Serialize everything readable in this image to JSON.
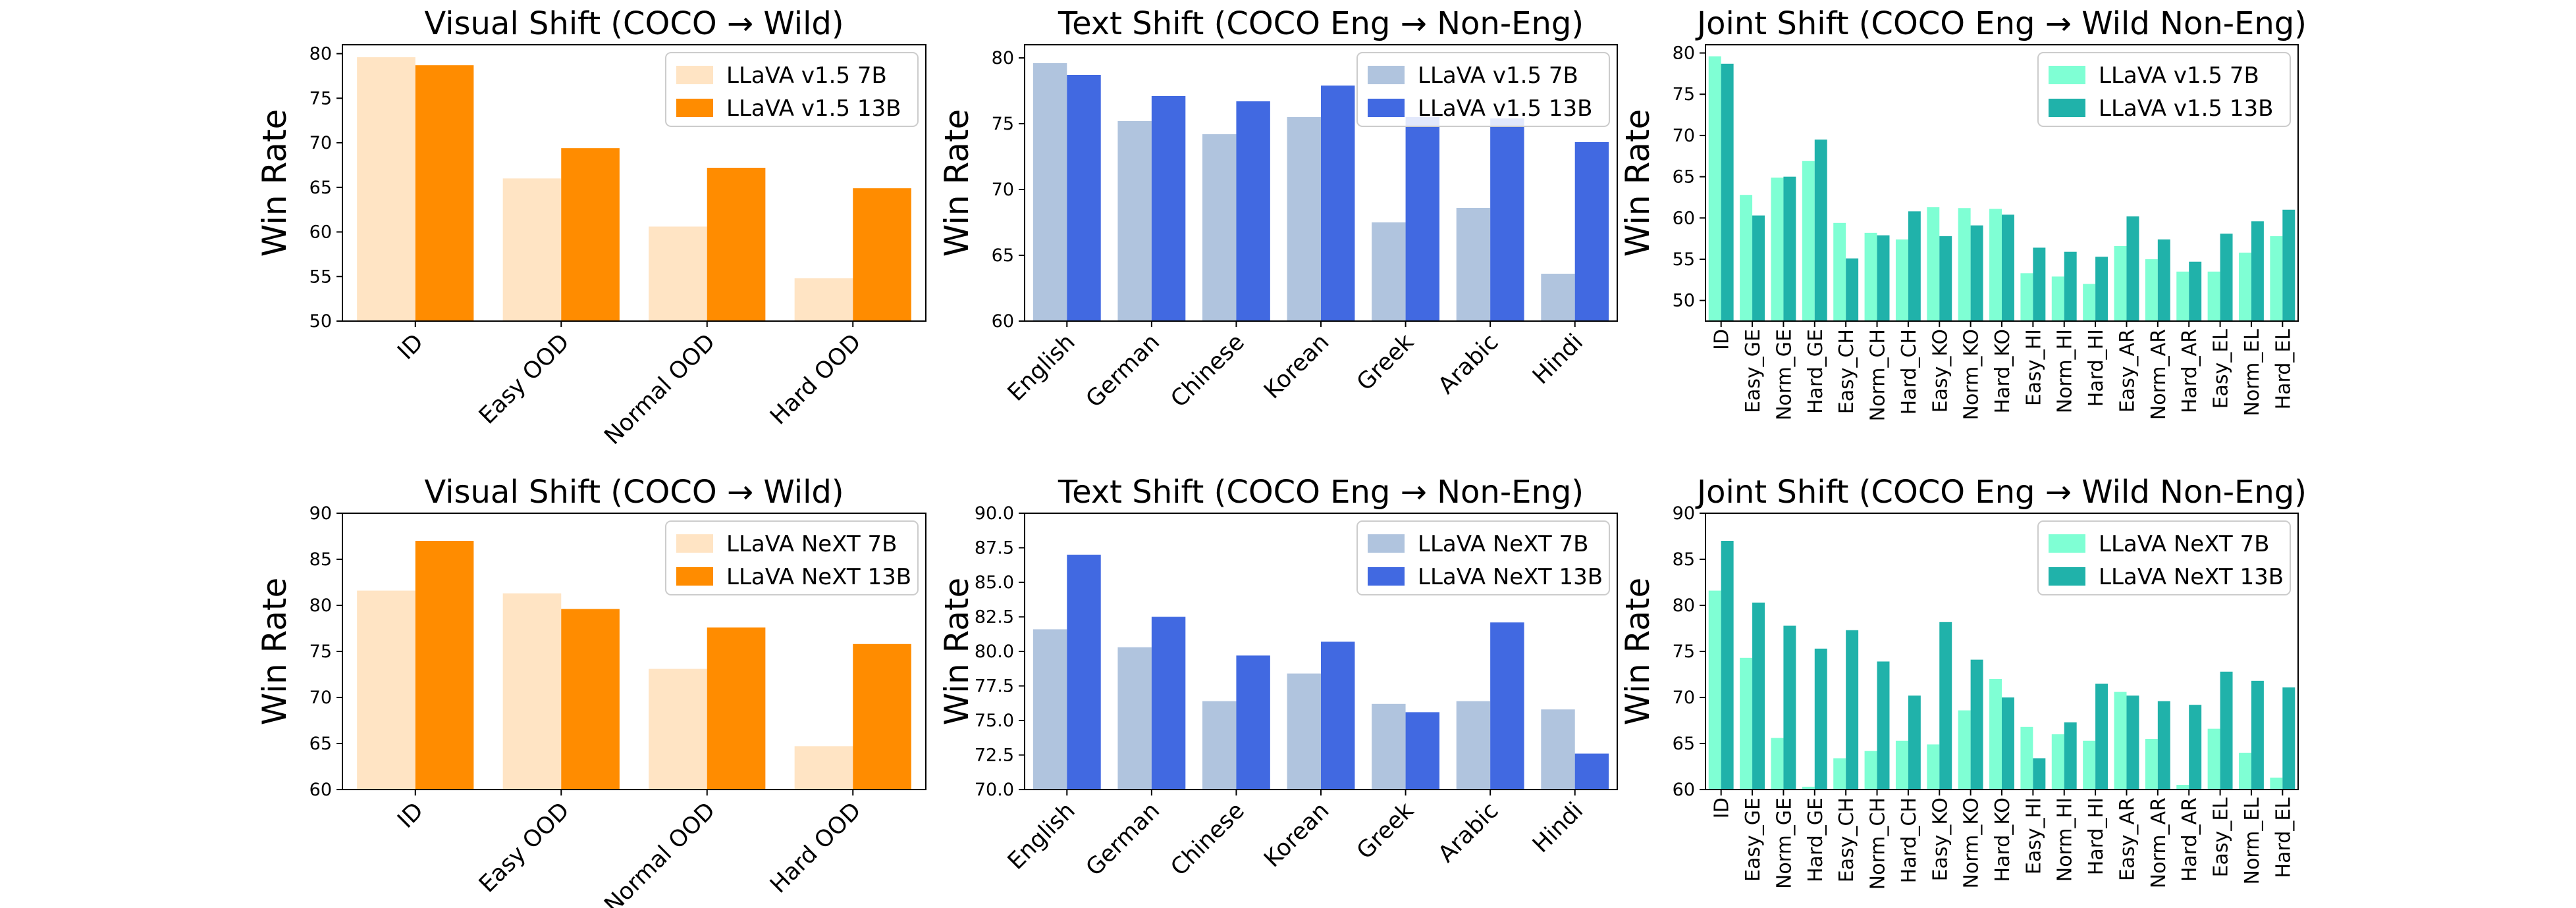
{
  "chart_data": [
    {
      "type": "bar",
      "title": "Visual Shift (COCO → Wild)",
      "xlabel": "",
      "ylabel": "Win Rate",
      "ylim": [
        50,
        81
      ],
      "yticks": [
        50,
        55,
        60,
        65,
        70,
        75,
        80
      ],
      "categories": [
        "ID",
        "Easy OOD",
        "Normal OOD",
        "Hard OOD"
      ],
      "series": [
        {
          "name": "LLaVA v1.5 7B",
          "color": "#ffe4c4",
          "values": [
            79.6,
            66.0,
            60.6,
            54.8
          ]
        },
        {
          "name": "LLaVA v1.5 13B",
          "color": "#ff8c00",
          "values": [
            78.7,
            69.4,
            67.2,
            64.9
          ]
        }
      ],
      "legend": "top-right",
      "grid": false
    },
    {
      "type": "bar",
      "title": "Text Shift (COCO Eng → Non-Eng)",
      "xlabel": "",
      "ylabel": "Win Rate",
      "ylim": [
        60,
        81
      ],
      "yticks": [
        60,
        65,
        70,
        75,
        80
      ],
      "categories": [
        "English",
        "German",
        "Chinese",
        "Korean",
        "Greek",
        "Arabic",
        "Hindi"
      ],
      "series": [
        {
          "name": "LLaVA v1.5 7B",
          "color": "#b0c4de",
          "values": [
            79.6,
            75.2,
            74.2,
            75.5,
            67.5,
            68.6,
            63.6
          ]
        },
        {
          "name": "LLaVA v1.5 13B",
          "color": "#4169e1",
          "values": [
            78.7,
            77.1,
            76.7,
            77.9,
            75.5,
            75.4,
            73.6
          ]
        }
      ],
      "legend": "top-right",
      "grid": false
    },
    {
      "type": "bar",
      "title": "Joint Shift (COCO Eng → Wild Non-Eng)",
      "xlabel": "",
      "ylabel": "Win Rate",
      "ylim": [
        47.5,
        81
      ],
      "yticks": [
        50,
        55,
        60,
        65,
        70,
        75,
        80
      ],
      "categories": [
        "ID",
        "Easy_GE",
        "Norm_GE",
        "Hard_GE",
        "Easy_CH",
        "Norm_CH",
        "Hard_CH",
        "Easy_KO",
        "Norm_KO",
        "Hard_KO",
        "Easy_HI",
        "Norm_HI",
        "Hard_HI",
        "Easy_AR",
        "Norm_AR",
        "Hard_AR",
        "Easy_EL",
        "Norm_EL",
        "Hard_EL"
      ],
      "series": [
        {
          "name": "LLaVA v1.5 7B",
          "color": "#7fffd4",
          "values": [
            79.6,
            62.8,
            64.9,
            66.9,
            59.4,
            58.2,
            57.4,
            61.3,
            61.2,
            61.1,
            53.3,
            52.9,
            52.0,
            56.6,
            55.0,
            53.5,
            53.5,
            55.8,
            57.8
          ]
        },
        {
          "name": "LLaVA v1.5 13B",
          "color": "#20b2aa",
          "values": [
            78.7,
            60.3,
            65.0,
            69.5,
            55.1,
            57.9,
            60.8,
            57.8,
            59.1,
            60.4,
            56.4,
            55.9,
            55.3,
            60.2,
            57.4,
            54.7,
            58.1,
            59.6,
            61.0
          ]
        }
      ],
      "legend": "top-right",
      "grid": false
    },
    {
      "type": "bar",
      "title": "Visual Shift (COCO → Wild)",
      "xlabel": "",
      "ylabel": "Win Rate",
      "ylim": [
        60,
        90
      ],
      "yticks": [
        60,
        65,
        70,
        75,
        80,
        85,
        90
      ],
      "categories": [
        "ID",
        "Easy OOD",
        "Normal OOD",
        "Hard OOD"
      ],
      "series": [
        {
          "name": "LLaVA NeXT 7B",
          "color": "#ffe4c4",
          "values": [
            81.6,
            81.3,
            73.1,
            64.7
          ]
        },
        {
          "name": "LLaVA NeXT 13B",
          "color": "#ff8c00",
          "values": [
            87.0,
            79.6,
            77.6,
            75.8
          ]
        }
      ],
      "legend": "top-right",
      "grid": false
    },
    {
      "type": "bar",
      "title": "Text Shift (COCO Eng → Non-Eng)",
      "xlabel": "",
      "ylabel": "Win Rate",
      "ylim": [
        70,
        90
      ],
      "yticks": [
        70.0,
        72.5,
        75.0,
        77.5,
        80.0,
        82.5,
        85.0,
        87.5,
        90.0
      ],
      "categories": [
        "English",
        "German",
        "Chinese",
        "Korean",
        "Greek",
        "Arabic",
        "Hindi"
      ],
      "series": [
        {
          "name": "LLaVA NeXT 7B",
          "color": "#b0c4de",
          "values": [
            81.6,
            80.3,
            76.4,
            78.4,
            76.2,
            76.4,
            75.8
          ]
        },
        {
          "name": "LLaVA NeXT 13B",
          "color": "#4169e1",
          "values": [
            87.0,
            82.5,
            79.7,
            80.7,
            75.6,
            82.1,
            72.6
          ]
        }
      ],
      "legend": "top-right",
      "grid": false
    },
    {
      "type": "bar",
      "title": "Joint Shift (COCO Eng → Wild Non-Eng)",
      "xlabel": "",
      "ylabel": "Win Rate",
      "ylim": [
        60,
        90
      ],
      "yticks": [
        60,
        65,
        70,
        75,
        80,
        85,
        90
      ],
      "categories": [
        "ID",
        "Easy_GE",
        "Norm_GE",
        "Hard_GE",
        "Easy_CH",
        "Norm_CH",
        "Hard_CH",
        "Easy_KO",
        "Norm_KO",
        "Hard_KO",
        "Easy_HI",
        "Norm_HI",
        "Hard_HI",
        "Easy_AR",
        "Norm_AR",
        "Hard_AR",
        "Easy_EL",
        "Norm_EL",
        "Hard_EL"
      ],
      "series": [
        {
          "name": "LLaVA NeXT 7B",
          "color": "#7fffd4",
          "values": [
            81.6,
            74.3,
            65.6,
            60.3,
            63.4,
            64.2,
            65.3,
            64.9,
            68.6,
            72.0,
            66.8,
            66.0,
            65.3,
            70.6,
            65.5,
            60.5,
            66.6,
            64.0,
            61.3
          ]
        },
        {
          "name": "LLaVA NeXT 13B",
          "color": "#20b2aa",
          "values": [
            87.0,
            80.3,
            77.8,
            75.3,
            77.3,
            73.9,
            70.2,
            78.2,
            74.1,
            70.0,
            63.4,
            67.3,
            71.5,
            70.2,
            69.6,
            69.2,
            72.8,
            71.8,
            71.1
          ]
        }
      ],
      "legend": "top-right",
      "grid": false
    }
  ]
}
